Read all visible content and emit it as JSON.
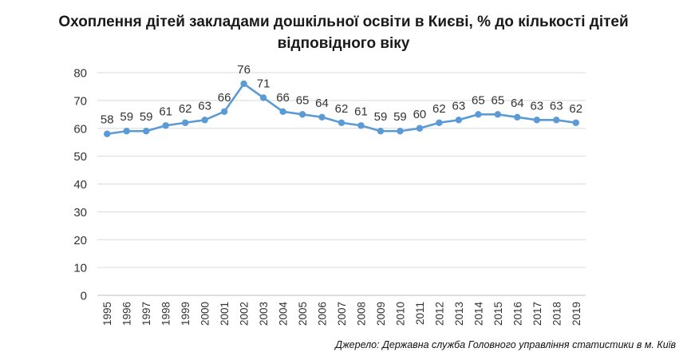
{
  "chart_data": {
    "type": "line",
    "title_line1": "Охоплення дітей закладами дошкільної освіти в Києві, % до кількості дітей",
    "title_line2": "відповідного віку",
    "categories": [
      "1995",
      "1996",
      "1997",
      "1998",
      "1999",
      "2000",
      "2001",
      "2002",
      "2003",
      "2004",
      "2005",
      "2006",
      "2007",
      "2008",
      "2009",
      "2010",
      "2011",
      "2012",
      "2013",
      "2014",
      "2015",
      "2016",
      "2017",
      "2018",
      "2019"
    ],
    "series": [
      {
        "values": [
          58,
          59,
          59,
          61,
          62,
          63,
          66,
          76,
          71,
          66,
          65,
          64,
          62,
          61,
          59,
          59,
          60,
          62,
          63,
          65,
          65,
          64,
          63,
          63,
          62
        ]
      }
    ],
    "data_labels": [
      "58",
      "59",
      "59",
      "61",
      "62",
      "63",
      "66",
      "76",
      "71",
      "66",
      "65",
      "64",
      "62",
      "61",
      "59",
      "59",
      "60",
      "62",
      "63",
      "65",
      "65",
      "64",
      "63",
      "63",
      "62"
    ],
    "ylim": [
      0,
      80
    ],
    "yticks": [
      0,
      10,
      20,
      30,
      40,
      50,
      60,
      70,
      80
    ],
    "grid": true,
    "legend": "none",
    "line_color": "#5b9bd5",
    "grid_color": "#d9d9d9"
  },
  "source": "Джерело: Державна служба Головного управління статистики в м. Київ"
}
